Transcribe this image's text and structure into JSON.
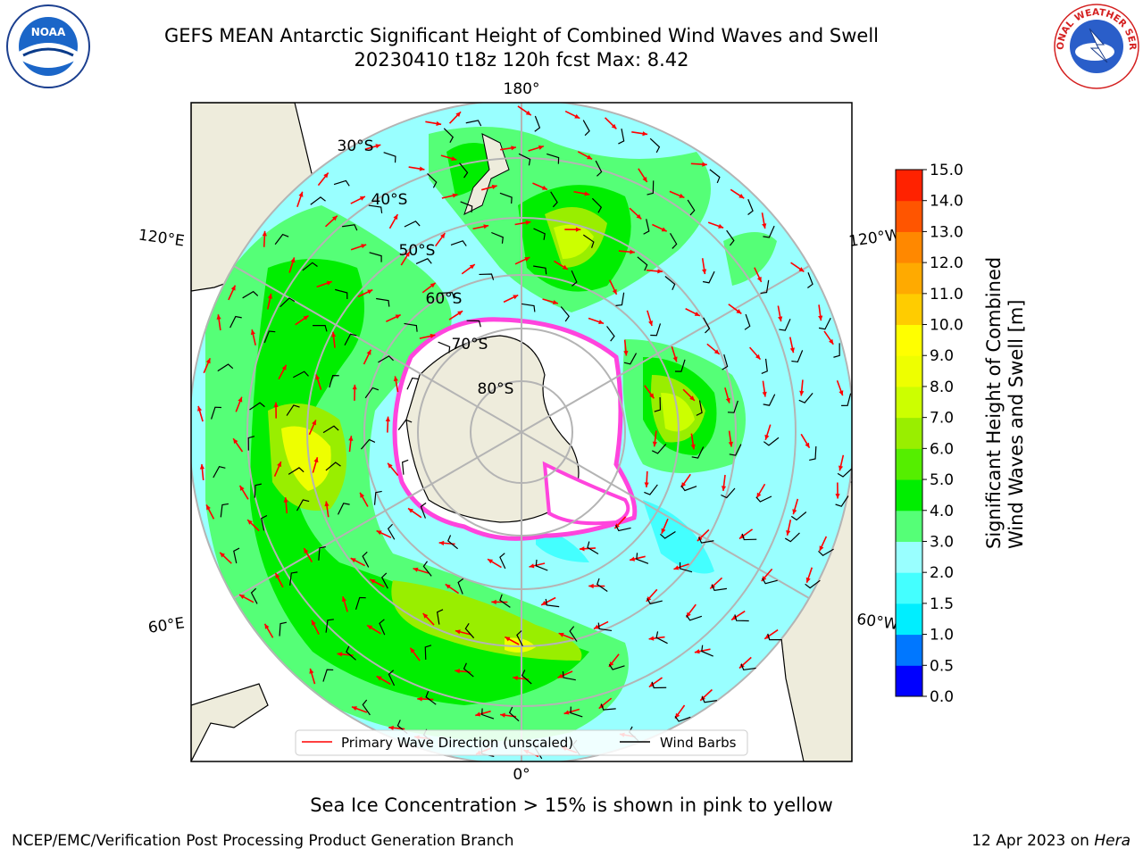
{
  "header": {
    "title_line1": "GEFS MEAN Antarctic Significant Height of Combined Wind Waves and Swell",
    "title_line2": "20230410 t18z 120h fcst   Max: 8.42",
    "left_logo": "NOAA",
    "right_logo": "NATIONAL WEATHER SERVICE"
  },
  "map": {
    "lon_labels": [
      "180°",
      "120°E",
      "120°W",
      "60°E",
      "60°W",
      "0°"
    ],
    "lat_labels": [
      "30°S",
      "40°S",
      "50°S",
      "60°S",
      "70°S",
      "80°S"
    ],
    "legend": {
      "wave_label": "Primary Wave Direction (unscaled)",
      "wind_label": "Wind Barbs"
    },
    "colors": {
      "land": "#eeecdc",
      "ice_white": "#ffffff",
      "ice_edge": "#ff44dd",
      "arrow": "#ff0000",
      "barb": "#000000"
    }
  },
  "colorbar": {
    "title_line1": "Significant Height of Combined",
    "title_line2": "Wind Waves and Swell [m]",
    "ticks": [
      "0.0",
      "0.5",
      "1.0",
      "1.5",
      "2.0",
      "3.0",
      "4.0",
      "5.0",
      "6.0",
      "7.0",
      "8.0",
      "9.0",
      "10.0",
      "11.0",
      "12.0",
      "13.0",
      "14.0",
      "15.0"
    ],
    "colors": [
      "#0000ff",
      "#0077ff",
      "#00eeff",
      "#44ffff",
      "#99ffff",
      "#55ff77",
      "#00ee00",
      "#55ee00",
      "#99ee00",
      "#ccff00",
      "#eeff00",
      "#ffff00",
      "#ffcc00",
      "#ffaa00",
      "#ff8800",
      "#ff5500",
      "#ff2200"
    ]
  },
  "caption": "Sea Ice Concentration > 15% is shown in pink to yellow",
  "footer": {
    "left": "NCEP/EMC/Verification Post Processing Product Generation Branch",
    "right_prefix": "12 Apr 2023 on ",
    "right_italic": "Hera"
  }
}
